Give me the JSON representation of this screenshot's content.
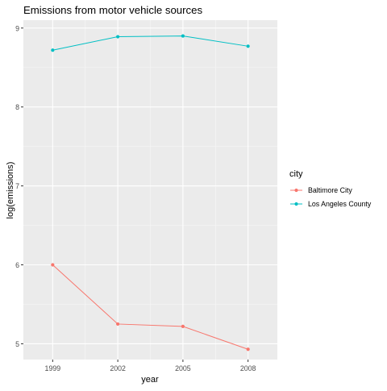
{
  "chart_data": {
    "type": "line",
    "title": "Emissions from motor vehicle sources",
    "xlabel": "year",
    "ylabel": "log(emissions)",
    "x": [
      1999,
      2002,
      2005,
      2008
    ],
    "x_ticks": [
      "1999",
      "2002",
      "2005",
      "2008"
    ],
    "y_ticks": [
      "5",
      "6",
      "7",
      "8",
      "9"
    ],
    "xlim": [
      1997.65,
      2009.35
    ],
    "ylim": [
      4.8,
      9.1
    ],
    "grid": true,
    "panel_background": "#EBEBEB",
    "legend": {
      "title": "city",
      "position": "right"
    },
    "series": [
      {
        "name": "Baltimore City",
        "color": "#F8766D",
        "values": [
          6.0,
          5.25,
          5.22,
          4.93
        ]
      },
      {
        "name": "Los Angeles County",
        "color": "#00BFC4",
        "values": [
          8.72,
          8.89,
          8.9,
          8.77
        ]
      }
    ]
  }
}
